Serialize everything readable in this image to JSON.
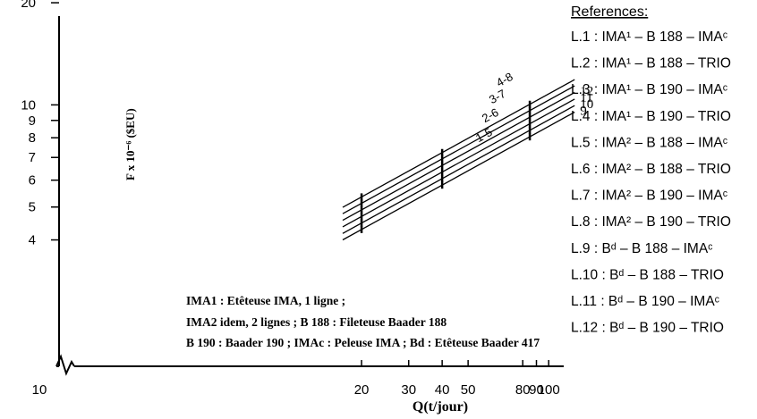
{
  "chart_data": {
    "type": "line",
    "title": "",
    "xlabel": "Q(t/jour)",
    "ylabel": "F x 10⁻⁶ ($EU)",
    "x_scale": "log",
    "y_scale": "log",
    "xlim": [
      10,
      120
    ],
    "ylim": [
      3.4,
      22
    ],
    "x_ticks": [
      10,
      20,
      30,
      40,
      50,
      80,
      90,
      100
    ],
    "x_tick_labels": [
      "10",
      "20",
      "30",
      "40",
      "50",
      "80",
      "90",
      "100"
    ],
    "y_ticks": [
      4,
      5,
      6,
      7,
      8,
      9,
      10,
      20
    ],
    "y_tick_labels": [
      "4",
      "5",
      "6",
      "7",
      "8",
      "9",
      "10",
      "20"
    ],
    "axis_break": "x",
    "grid": false,
    "series": [
      {
        "name": "9",
        "x": [
          17,
          125
        ],
        "y": [
          4.0,
          9.52
        ]
      },
      {
        "name": "10",
        "x": [
          17,
          125
        ],
        "y": [
          4.18,
          9.95
        ]
      },
      {
        "name": "11",
        "x": [
          17,
          125
        ],
        "y": [
          4.37,
          10.4
        ]
      },
      {
        "name": "12",
        "x": [
          17,
          125
        ],
        "y": [
          4.57,
          10.88
        ]
      },
      {
        "name": "",
        "x": [
          17,
          125
        ],
        "y": [
          4.78,
          11.38
        ]
      },
      {
        "name": "",
        "x": [
          17,
          125
        ],
        "y": [
          4.99,
          11.87
        ]
      }
    ],
    "line_group_labels": [
      "1-5",
      "2-6",
      "3-7",
      "4-8"
    ],
    "marker_x": [
      20,
      40,
      85
    ],
    "references_title": "References:",
    "references": [
      "L.1 : IMA¹ – B 188 – IMAᶜ",
      "L.2 : IMA¹ – B 188 – TRIO",
      "L.3 : IMA¹ – B 190 – IMAᶜ",
      "L.4 : IMA¹ – B 190 – TRIO",
      "L.5 : IMA² – B 188 – IMAᶜ",
      "L.6 : IMA² – B 188 – TRIO",
      "L.7 : IMA² – B 190 – IMAᶜ",
      "L.8 : IMA² – B 190 – TRIO",
      "L.9 : Bᵈ  – B 188 – IMAᶜ",
      "L.10 : Bᵈ  – B 188 – TRIO",
      "L.11 : Bᵈ  – B 190 – IMAᶜ",
      "L.12 : Bᵈ  – B 190 – TRIO"
    ],
    "notes": [
      "IMA1 : Etêteuse IMA, 1 ligne ;",
      "IMA2 idem, 2 lignes ; B 188 : Fileteuse Baader 188",
      "B 190 : Baader 190 ; IMAc : Peleuse IMA ; Bd : Etêteuse Baader 417"
    ]
  }
}
